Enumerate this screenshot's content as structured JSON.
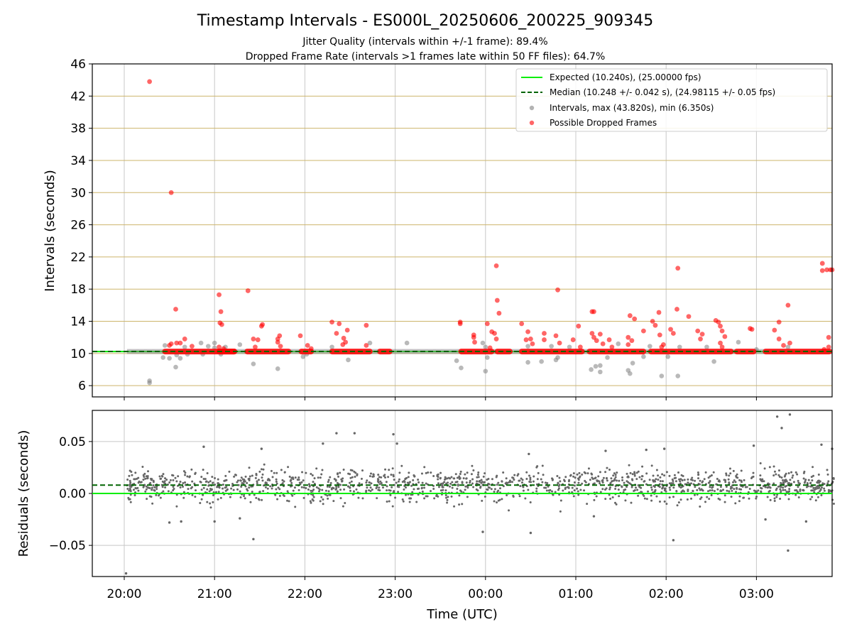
{
  "figure": {
    "title": "Timestamp Intervals - ES000L_20250606_200225_909345",
    "subtitle_1": "Jitter Quality (intervals within +/-1 frame): 89.4%",
    "subtitle_2": "Dropped Frame Rate (intervals >1 frames late within 50 FF files): 64.7%"
  },
  "colors": {
    "expected": "#00ee00",
    "median": "#006400",
    "intervals": "#808080",
    "dropped": "#ff0000",
    "hgrid_top": "#cdb56b",
    "grid": "#c8c8c8",
    "residual_points": "#666666"
  },
  "chart_data": [
    {
      "type": "scatter",
      "panel": "top",
      "xlabel": "",
      "ylabel": "Intervals (seconds)",
      "x_ticks": [
        "20:00",
        "21:00",
        "22:00",
        "23:00",
        "00:00",
        "01:00",
        "02:00",
        "03:00"
      ],
      "xlim_hours": [
        19.83,
        27.86
      ],
      "ylim": [
        4.6,
        46
      ],
      "y_ticks": [
        6,
        10,
        14,
        18,
        22,
        26,
        30,
        34,
        38,
        42,
        46
      ],
      "grid": true,
      "legend_position": "top-right",
      "legend": [
        "Expected (10.240s), (25.00000 fps)",
        "Median (10.248 +/- 0.042 s), (24.98115 +/- 0.05 fps)",
        "Intervals, max (43.820s), min (6.350s)",
        "Possible Dropped Frames"
      ],
      "lines": [
        {
          "name": "Expected",
          "y": 10.24,
          "style": "solid"
        },
        {
          "name": "Median",
          "y": 10.248,
          "style": "dashed"
        }
      ],
      "dropped_baseline_segments_hours": [
        [
          20.42,
          21.25
        ],
        [
          21.02,
          21.25
        ],
        [
          21.33,
          21.85
        ],
        [
          21.93,
          22.1
        ],
        [
          22.27,
          22.75
        ],
        [
          22.8,
          22.97
        ],
        [
          23.7,
          24.1
        ],
        [
          24.1,
          24.3
        ],
        [
          24.37,
          25.1
        ],
        [
          25.12,
          25.78
        ],
        [
          25.8,
          26.75
        ],
        [
          26.75,
          27.0
        ],
        [
          27.07,
          27.86
        ]
      ],
      "series": [
        {
          "name": "Possible Dropped Frames",
          "points": [
            [
              20.28,
              43.8
            ],
            [
              20.52,
              30.0
            ],
            [
              20.57,
              15.5
            ],
            [
              20.58,
              11.3
            ],
            [
              20.52,
              11.2
            ],
            [
              20.5,
              11.0
            ],
            [
              20.62,
              11.3
            ],
            [
              20.67,
              11.8
            ],
            [
              20.75,
              10.9
            ],
            [
              21.05,
              17.3
            ],
            [
              21.07,
              15.2
            ],
            [
              21.06,
              13.8
            ],
            [
              21.08,
              13.6
            ],
            [
              21.05,
              10.8
            ],
            [
              21.1,
              10.6
            ],
            [
              21.37,
              17.8
            ],
            [
              21.43,
              11.8
            ],
            [
              21.48,
              11.7
            ],
            [
              21.52,
              13.4
            ],
            [
              21.53,
              13.6
            ],
            [
              21.45,
              10.8
            ],
            [
              21.7,
              11.8
            ],
            [
              21.72,
              12.2
            ],
            [
              21.7,
              11.4
            ],
            [
              21.73,
              10.9
            ],
            [
              21.95,
              12.2
            ],
            [
              22.03,
              11.0
            ],
            [
              22.07,
              10.6
            ],
            [
              22.3,
              13.9
            ],
            [
              22.35,
              12.5
            ],
            [
              22.38,
              13.7
            ],
            [
              22.43,
              11.9
            ],
            [
              22.45,
              11.4
            ],
            [
              22.47,
              12.9
            ],
            [
              22.42,
              11.1
            ],
            [
              22.68,
              13.5
            ],
            [
              22.68,
              11.0
            ],
            [
              23.72,
              13.9
            ],
            [
              23.72,
              13.7
            ],
            [
              23.87,
              12.3
            ],
            [
              23.87,
              12.0
            ],
            [
              23.88,
              11.4
            ],
            [
              24.02,
              13.7
            ],
            [
              24.07,
              12.7
            ],
            [
              24.1,
              12.5
            ],
            [
              24.12,
              20.9
            ],
            [
              24.13,
              16.6
            ],
            [
              24.15,
              15.0
            ],
            [
              24.12,
              11.8
            ],
            [
              24.05,
              10.7
            ],
            [
              24.4,
              13.7
            ],
            [
              24.45,
              11.7
            ],
            [
              24.47,
              12.7
            ],
            [
              24.5,
              11.8
            ],
            [
              24.52,
              11.2
            ],
            [
              24.65,
              12.5
            ],
            [
              24.65,
              11.7
            ],
            [
              24.78,
              12.2
            ],
            [
              24.8,
              17.9
            ],
            [
              24.82,
              11.3
            ],
            [
              24.97,
              11.7
            ],
            [
              25.03,
              13.4
            ],
            [
              25.05,
              10.8
            ],
            [
              25.18,
              15.2
            ],
            [
              25.2,
              15.2
            ],
            [
              25.18,
              12.5
            ],
            [
              25.2,
              12.0
            ],
            [
              25.23,
              11.6
            ],
            [
              25.27,
              12.4
            ],
            [
              25.3,
              11.2
            ],
            [
              25.37,
              11.7
            ],
            [
              25.4,
              10.8
            ],
            [
              25.58,
              12.0
            ],
            [
              25.6,
              14.7
            ],
            [
              25.62,
              11.6
            ],
            [
              25.65,
              14.3
            ],
            [
              25.58,
              11.1
            ],
            [
              25.75,
              12.8
            ],
            [
              25.85,
              14.0
            ],
            [
              25.88,
              13.5
            ],
            [
              25.92,
              15.1
            ],
            [
              25.93,
              12.3
            ],
            [
              25.97,
              11.1
            ],
            [
              25.95,
              10.8
            ],
            [
              26.05,
              13.0
            ],
            [
              26.08,
              12.5
            ],
            [
              26.12,
              15.5
            ],
            [
              26.13,
              20.6
            ],
            [
              26.25,
              14.6
            ],
            [
              26.35,
              12.8
            ],
            [
              26.4,
              12.4
            ],
            [
              26.38,
              11.8
            ],
            [
              26.55,
              14.1
            ],
            [
              26.58,
              13.9
            ],
            [
              26.6,
              13.4
            ],
            [
              26.62,
              12.8
            ],
            [
              26.65,
              12.1
            ],
            [
              26.6,
              11.3
            ],
            [
              26.62,
              10.8
            ],
            [
              26.93,
              13.1
            ],
            [
              26.95,
              13.0
            ],
            [
              27.2,
              12.9
            ],
            [
              27.25,
              13.9
            ],
            [
              27.25,
              11.8
            ],
            [
              27.3,
              11.0
            ],
            [
              27.35,
              16.0
            ],
            [
              27.37,
              11.3
            ],
            [
              27.73,
              21.2
            ],
            [
              27.73,
              20.3
            ],
            [
              27.78,
              20.4
            ],
            [
              27.82,
              20.4
            ],
            [
              27.85,
              20.4
            ],
            [
              27.8,
              12.0
            ],
            [
              27.8,
              10.8
            ],
            [
              27.75,
              10.5
            ]
          ]
        },
        {
          "name": "Intervals",
          "points": [
            [
              20.28,
              6.6
            ],
            [
              20.28,
              6.35
            ],
            [
              20.45,
              11.0
            ],
            [
              20.43,
              9.5
            ],
            [
              20.5,
              9.4
            ],
            [
              20.57,
              8.3
            ],
            [
              20.62,
              9.4
            ],
            [
              20.58,
              9.8
            ],
            [
              20.67,
              10.8
            ],
            [
              20.7,
              9.9
            ],
            [
              20.85,
              11.3
            ],
            [
              20.87,
              9.9
            ],
            [
              20.93,
              10.9
            ],
            [
              21.0,
              10.7
            ],
            [
              21.0,
              11.3
            ],
            [
              21.07,
              9.9
            ],
            [
              21.12,
              10.8
            ],
            [
              21.28,
              11.1
            ],
            [
              21.43,
              8.7
            ],
            [
              21.7,
              8.1
            ],
            [
              21.98,
              9.6
            ],
            [
              22.02,
              9.9
            ],
            [
              22.3,
              10.8
            ],
            [
              22.48,
              9.2
            ],
            [
              22.72,
              11.3
            ],
            [
              23.13,
              11.3
            ],
            [
              23.68,
              9.1
            ],
            [
              23.73,
              8.2
            ],
            [
              23.97,
              11.3
            ],
            [
              24.0,
              10.8
            ],
            [
              24.0,
              7.8
            ],
            [
              24.02,
              9.5
            ],
            [
              24.47,
              10.9
            ],
            [
              24.47,
              8.9
            ],
            [
              24.62,
              9.0
            ],
            [
              24.73,
              10.9
            ],
            [
              24.78,
              9.2
            ],
            [
              24.8,
              9.5
            ],
            [
              24.93,
              10.8
            ],
            [
              25.17,
              8.0
            ],
            [
              25.22,
              8.4
            ],
            [
              25.27,
              7.7
            ],
            [
              25.27,
              8.5
            ],
            [
              25.35,
              9.5
            ],
            [
              25.47,
              11.2
            ],
            [
              25.58,
              7.9
            ],
            [
              25.6,
              7.5
            ],
            [
              25.63,
              8.8
            ],
            [
              25.75,
              9.6
            ],
            [
              25.82,
              10.9
            ],
            [
              25.95,
              7.2
            ],
            [
              26.02,
              9.6
            ],
            [
              26.13,
              7.2
            ],
            [
              26.15,
              10.8
            ],
            [
              26.45,
              10.8
            ],
            [
              26.53,
              9.0
            ],
            [
              26.8,
              11.4
            ],
            [
              27.0,
              10.5
            ],
            [
              27.35,
              10.8
            ]
          ]
        }
      ]
    },
    {
      "type": "scatter",
      "panel": "bottom",
      "xlabel": "Time (UTC)",
      "ylabel": "Residuals (seconds)",
      "x_ticks": [
        "20:00",
        "21:00",
        "22:00",
        "23:00",
        "00:00",
        "01:00",
        "02:00",
        "03:00"
      ],
      "xlim_hours": [
        19.83,
        27.86
      ],
      "ylim": [
        -0.08,
        0.08
      ],
      "y_ticks": [
        -0.05,
        0.0,
        0.05
      ],
      "y_tick_labels": [
        "−0.05",
        "0.00",
        "0.05"
      ],
      "lines": [
        {
          "name": "Expected",
          "y": 0.0,
          "style": "solid"
        },
        {
          "name": "Median",
          "y": 0.008,
          "style": "dashed"
        }
      ],
      "residual_band": {
        "x_start_hours": 20.03,
        "x_end_hours": 27.86,
        "center": 0.008,
        "spread": 0.011,
        "approx_count": 1500
      },
      "series": [
        {
          "name": "Residual outliers",
          "points": [
            [
              20.02,
              -0.077
            ],
            [
              27.23,
              0.074
            ],
            [
              27.37,
              0.076
            ],
            [
              27.28,
              0.063
            ],
            [
              27.35,
              -0.055
            ],
            [
              22.35,
              0.058
            ],
            [
              22.55,
              0.058
            ],
            [
              22.98,
              0.057
            ],
            [
              21.43,
              -0.044
            ],
            [
              26.08,
              -0.045
            ],
            [
              23.97,
              -0.037
            ],
            [
              24.5,
              -0.038
            ],
            [
              21.28,
              -0.024
            ],
            [
              20.88,
              0.045
            ],
            [
              21.52,
              0.043
            ],
            [
              22.2,
              0.048
            ],
            [
              23.02,
              0.048
            ],
            [
              25.78,
              0.042
            ],
            [
              25.98,
              0.043
            ],
            [
              26.97,
              0.046
            ],
            [
              27.72,
              0.047
            ],
            [
              27.85,
              0.043
            ],
            [
              24.48,
              0.038
            ],
            [
              25.33,
              0.041
            ],
            [
              20.5,
              -0.028
            ],
            [
              20.63,
              -0.027
            ],
            [
              21.0,
              -0.027
            ],
            [
              25.2,
              -0.022
            ],
            [
              27.1,
              -0.025
            ],
            [
              27.55,
              -0.027
            ]
          ]
        }
      ]
    }
  ]
}
